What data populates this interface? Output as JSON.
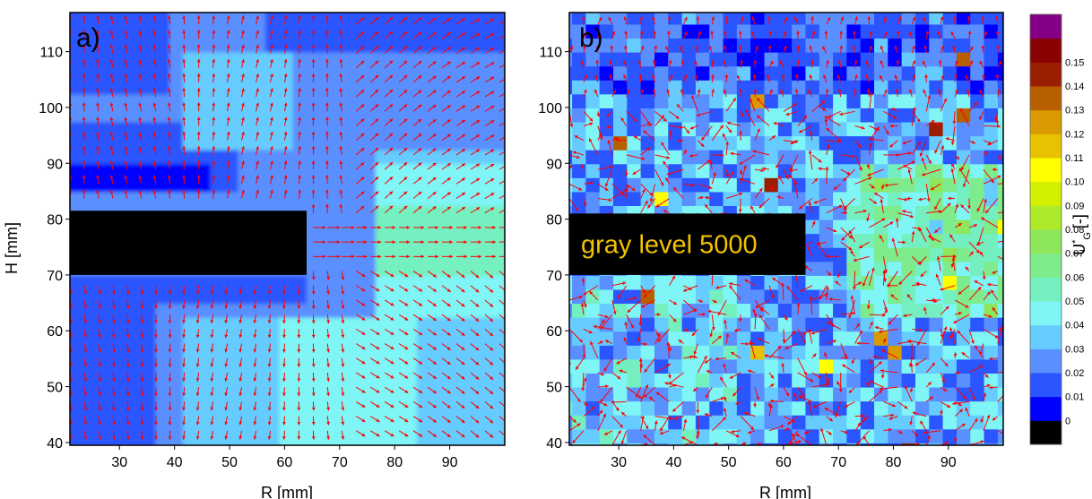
{
  "chart_data": [
    {
      "type": "heatmap",
      "panel_label": "a)",
      "xlabel": "R [mm]",
      "ylabel": "H [mm]",
      "xlim": [
        21,
        100
      ],
      "ylim": [
        39.5,
        117
      ],
      "xticks": [
        30,
        40,
        50,
        60,
        70,
        80,
        90
      ],
      "yticks": [
        40,
        50,
        60,
        70,
        80,
        90,
        100,
        110
      ],
      "overlay": {
        "type": "vector-field",
        "color": "#ff0000"
      },
      "masked_region": {
        "r": [
          21,
          64
        ],
        "h": [
          70,
          81.5
        ],
        "color": "#000000",
        "label": ""
      },
      "notes": "Contour map of U*_G with velocity arrows; jet around H=75 mm, lower region 0.04-0.06"
    },
    {
      "type": "heatmap",
      "panel_label": "b)",
      "xlabel": "R [mm]",
      "ylabel": "",
      "xlim": [
        21,
        100
      ],
      "ylim": [
        39.5,
        117
      ],
      "xticks": [
        30,
        40,
        50,
        60,
        70,
        80,
        90
      ],
      "yticks": [
        40,
        50,
        60,
        70,
        80,
        90,
        100,
        110
      ],
      "overlay": {
        "type": "vector-field",
        "color": "#ff0000"
      },
      "masked_region": {
        "r": [
          21,
          64
        ],
        "h": [
          70,
          81
        ],
        "color": "#000000",
        "label": "gray level 5000"
      },
      "notes": "Noisy contour map of U*_G with hot spots up to 0.15"
    }
  ],
  "colorbar": {
    "title_main": "U",
    "title_sup": "*",
    "title_sub": "G",
    "title_unit": "[-]",
    "levels": [
      "0",
      "0.01",
      "0.02",
      "0.03",
      "0.04",
      "0.05",
      "0.06",
      "0.07",
      "0.08",
      "0.09",
      "0.10",
      "0.11",
      "0.12",
      "0.13",
      "0.14",
      "0.15"
    ],
    "colors": [
      "#000000",
      "#0000ff",
      "#2a55ff",
      "#5a8fff",
      "#66ccff",
      "#7ff5f5",
      "#74f0c0",
      "#7eec8c",
      "#8ee65a",
      "#adea2a",
      "#d2f000",
      "#ffff00",
      "#e6c200",
      "#d89a00",
      "#b86000",
      "#9a1e00",
      "#8b0000",
      "#850085"
    ]
  }
}
